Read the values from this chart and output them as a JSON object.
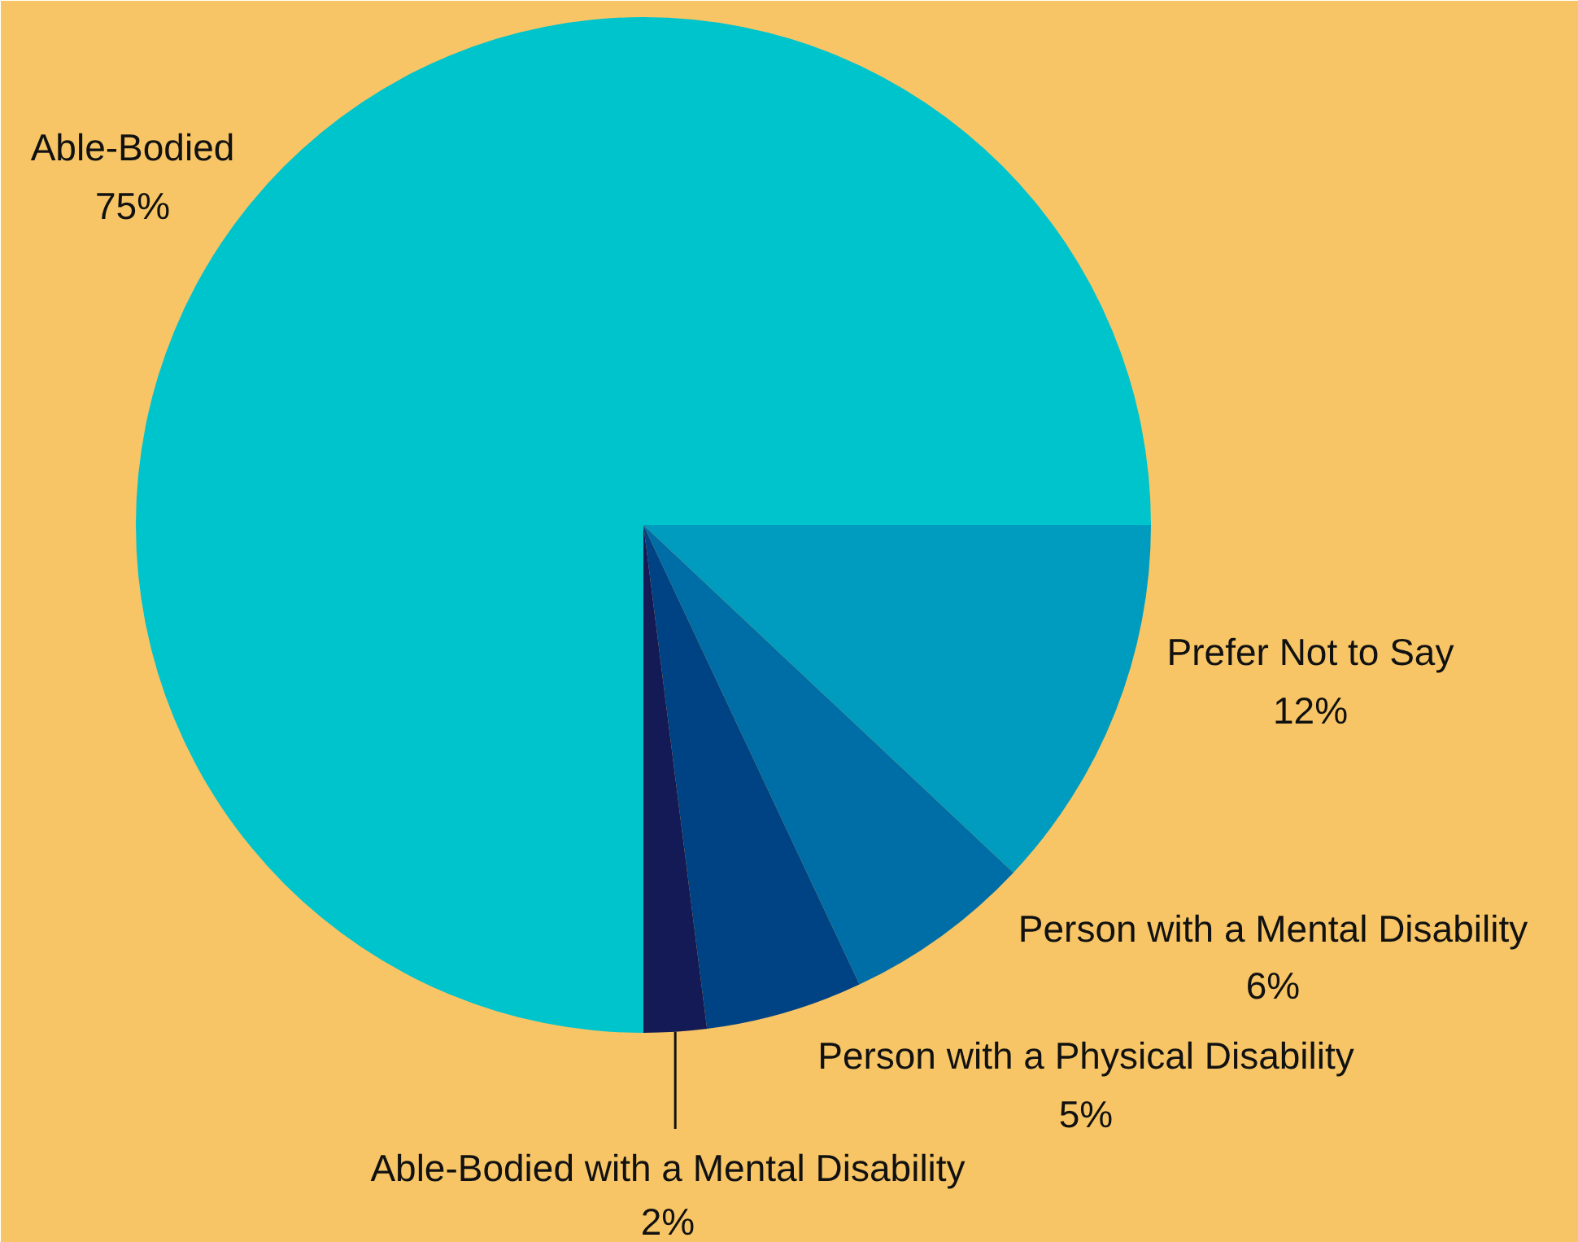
{
  "chart_data": {
    "type": "pie",
    "categories": [
      "Able-Bodied",
      "Prefer Not to Say",
      "Person with a Mental Disability",
      "Person with a Physical Disability",
      "Able-Bodied with a Mental Disability"
    ],
    "values": [
      75,
      12,
      6,
      5,
      2
    ],
    "value_labels": [
      "75%",
      "12%",
      "6%",
      "5%",
      "2%"
    ],
    "colors": [
      "#00c4cc",
      "#009cbf",
      "#006ea6",
      "#004385",
      "#131a55"
    ],
    "legend": false
  }
}
